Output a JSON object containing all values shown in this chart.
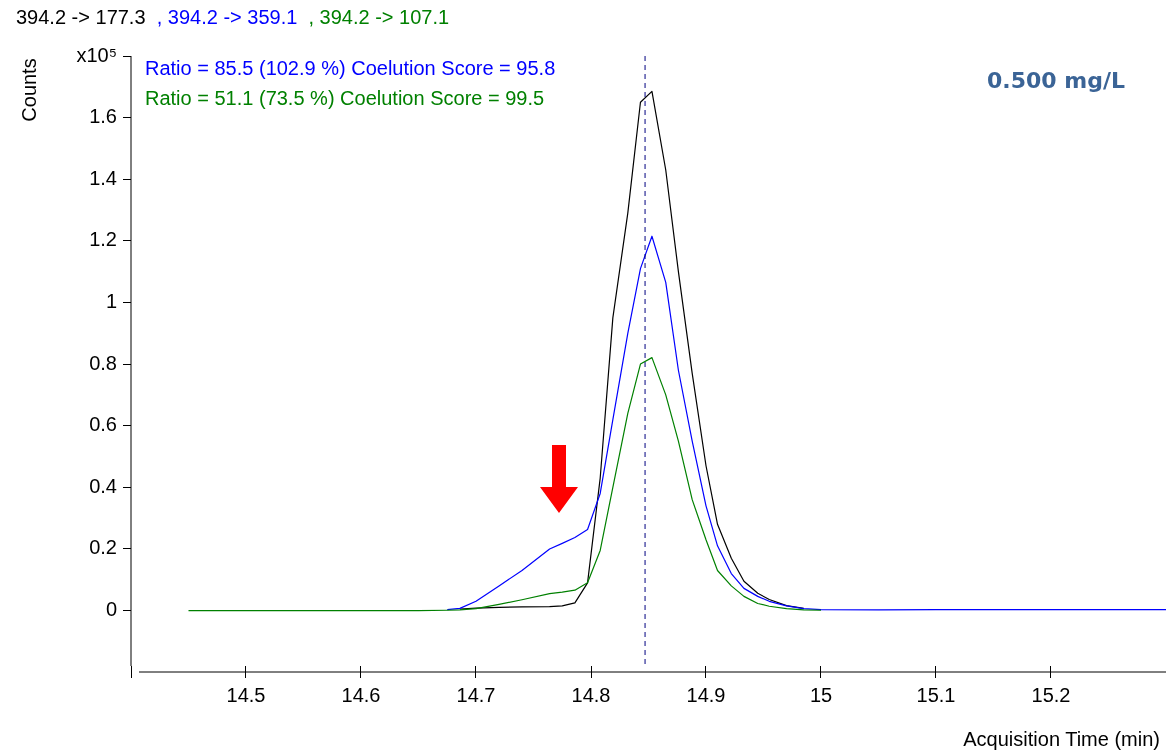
{
  "chart_data": {
    "type": "line",
    "xlabel": "Acquisition Time (min)",
    "ylabel": "Counts",
    "x": [
      14.45,
      14.55,
      14.65,
      14.675,
      14.686,
      14.7,
      14.72,
      14.74,
      14.764,
      14.775,
      14.786,
      14.797,
      14.808,
      14.819,
      14.832,
      14.843,
      14.853,
      14.865,
      14.876,
      14.888,
      14.9,
      14.91,
      14.922,
      14.933,
      14.945,
      14.955,
      14.97,
      14.985,
      15.0,
      15.05,
      15.1,
      15.2,
      15.3
    ],
    "series": [
      {
        "name": "394.2 -> 177.3",
        "color": "#000000",
        "values": [
          null,
          null,
          null,
          null,
          0.005,
          0.008,
          0.01,
          0.012,
          0.013,
          0.015,
          0.025,
          0.09,
          0.43,
          0.95,
          1.29,
          1.65,
          1.685,
          1.43,
          1.1,
          0.77,
          0.47,
          0.28,
          0.17,
          0.095,
          0.056,
          0.036,
          0.016,
          0.007,
          null,
          null,
          null,
          null,
          null
        ]
      },
      {
        "name": ", 394.2 -> 359.1",
        "color": "#0000ff",
        "values": [
          null,
          null,
          null,
          0.003,
          0.007,
          0.03,
          0.08,
          0.13,
          0.2,
          0.218,
          0.237,
          0.263,
          0.38,
          0.62,
          0.9,
          1.11,
          1.215,
          1.065,
          0.78,
          0.55,
          0.34,
          0.21,
          0.12,
          0.072,
          0.046,
          0.03,
          0.015,
          0.006,
          0.003,
          0.002,
          0.003,
          0.003,
          0.003
        ]
      },
      {
        "name": ", 394.2 -> 107.1",
        "color": "#008000",
        "values": [
          0,
          0,
          0,
          0.001,
          0.002,
          0.006,
          0.02,
          0.035,
          0.055,
          0.06,
          0.066,
          0.09,
          0.195,
          0.4,
          0.64,
          0.8,
          0.821,
          0.7,
          0.55,
          0.36,
          0.23,
          0.13,
          0.08,
          0.046,
          0.023,
          0.014,
          0.006,
          0.002,
          0.001,
          null,
          null,
          null,
          null
        ]
      }
    ],
    "xlim": [
      14.4,
      15.3
    ],
    "xticks": [
      {
        "value": 14.4,
        "label": null
      },
      14.5,
      14.6,
      14.7,
      14.8,
      14.9,
      15,
      15.1,
      15.2
    ],
    "ylim": [
      -0.18,
      1.8
    ],
    "yticks": [
      0,
      0.2,
      0.4,
      0.6,
      0.8,
      1,
      1.2,
      1.4,
      1.6,
      {
        "value": 1.8,
        "label": "x10⁵"
      }
    ],
    "ref_lines": [
      {
        "axis": "x",
        "value": 14.847,
        "color": "#000080",
        "line_style": "dashed"
      }
    ],
    "annotations": [
      "Ratio = 85.5 (102.9 %) Coelution Score = 95.8",
      "Ratio = 51.1 (73.5 %) Coelution Score = 99.5",
      "0.500 mg/L"
    ],
    "legend": "top left",
    "grid": false,
    "marker": "none",
    "line_style": "solid"
  }
}
